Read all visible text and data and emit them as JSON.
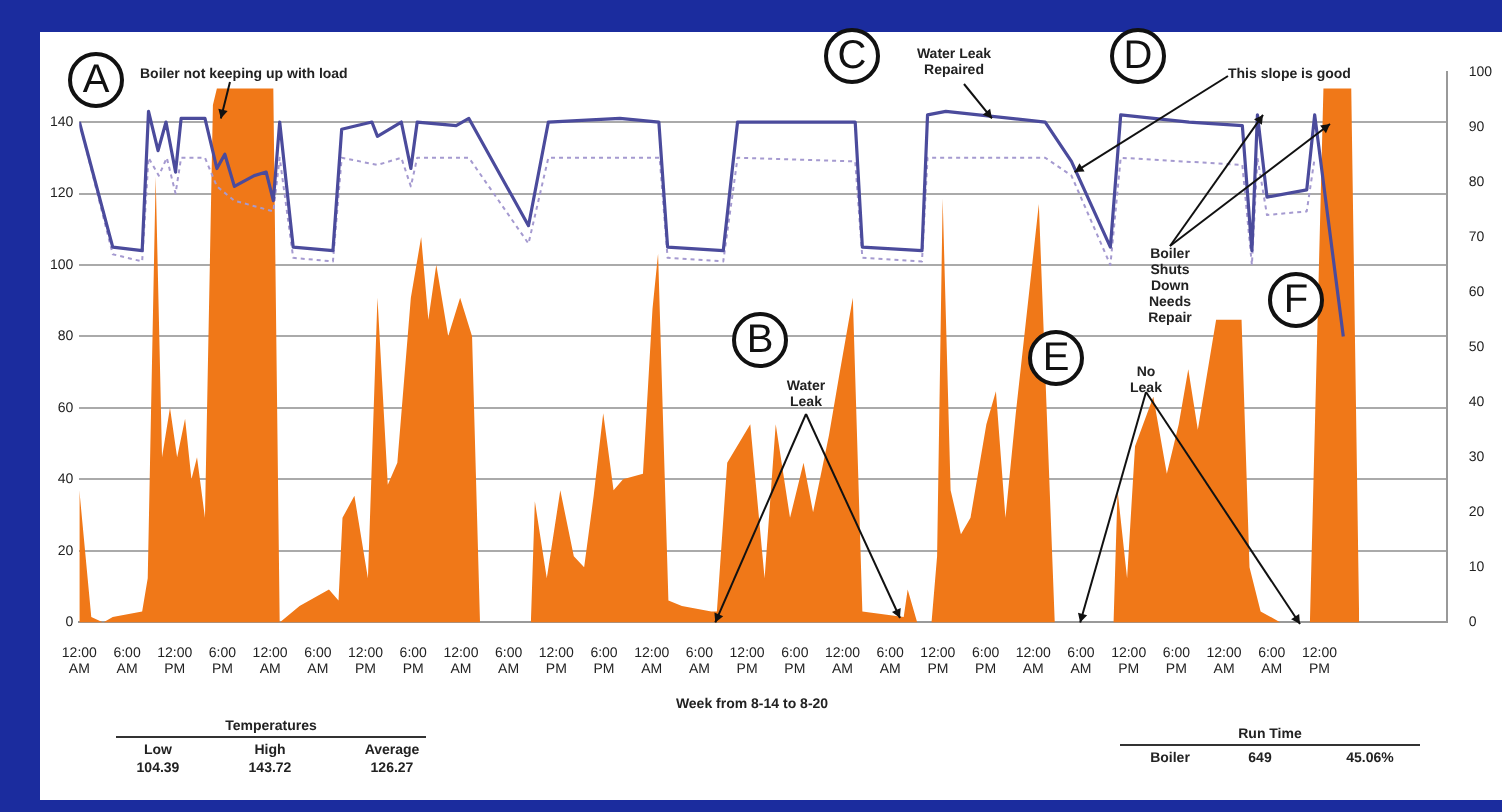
{
  "chart_data": {
    "type": "area",
    "xlabel": "Week from 8-14 to 8-20",
    "xlim": [
      "--08-14T00:00",
      "--08-21T04:00"
    ],
    "xticks": [
      {
        "value": "--08-14T00:00",
        "label": "12:00 AM"
      },
      {
        "value": "--08-14T06:00",
        "label": "6:00 AM"
      },
      {
        "value": "--08-14T12:00",
        "label": "12:00 PM"
      },
      {
        "value": "--08-14T18:00",
        "label": "6:00 PM"
      },
      {
        "value": "--08-15T00:00",
        "label": "12:00 AM"
      },
      {
        "value": "--08-15T06:00",
        "label": "6:00 AM"
      },
      {
        "value": "--08-15T12:00",
        "label": "12:00 PM"
      },
      {
        "value": "--08-15T18:00",
        "label": "6:00 PM"
      },
      {
        "value": "--08-16T00:00",
        "label": "12:00 AM"
      },
      {
        "value": "--08-16T06:00",
        "label": "6:00 AM"
      },
      {
        "value": "--08-16T12:00",
        "label": "12:00 PM"
      },
      {
        "value": "--08-16T18:00",
        "label": "6:00 PM"
      },
      {
        "value": "--08-17T00:00",
        "label": "12:00 AM"
      },
      {
        "value": "--08-17T06:00",
        "label": "6:00 AM"
      },
      {
        "value": "--08-17T12:00",
        "label": "12:00 PM"
      },
      {
        "value": "--08-17T18:00",
        "label": "6:00 PM"
      },
      {
        "value": "--08-18T00:00",
        "label": "12:00 AM"
      },
      {
        "value": "--08-18T06:00",
        "label": "6:00 AM"
      },
      {
        "value": "--08-18T12:00",
        "label": "12:00 PM"
      },
      {
        "value": "--08-18T18:00",
        "label": "6:00 PM"
      },
      {
        "value": "--08-19T00:00",
        "label": "12:00 AM"
      },
      {
        "value": "--08-19T06:00",
        "label": "6:00 AM"
      },
      {
        "value": "--08-19T12:00",
        "label": "12:00 PM"
      },
      {
        "value": "--08-19T18:00",
        "label": "6:00 PM"
      },
      {
        "value": "--08-20T00:00",
        "label": "12:00 AM"
      },
      {
        "value": "--08-20T06:00",
        "label": "6:00 AM"
      },
      {
        "value": "--08-20T12:00",
        "label": "12:00 PM"
      }
    ],
    "ylim": [
      0,
      154
    ],
    "yticks": [
      0,
      20,
      40,
      60,
      80,
      100,
      120,
      140
    ],
    "y2lim": [
      0,
      100
    ],
    "y2ticks": [
      0,
      10,
      20,
      30,
      40,
      50,
      60,
      70,
      80,
      90,
      100
    ],
    "grid": "y",
    "series": [
      {
        "type": "line",
        "color": "#4b4b9c",
        "line_style": "solid",
        "x": [
          "--08-14T00:00",
          "--08-14T04:12",
          "--08-14T07:54",
          "--08-14T08:42",
          "--08-14T09:54",
          "--08-14T10:54",
          "--08-14T12:06",
          "--08-14T12:48",
          "--08-14T15:48",
          "--08-14T17:18",
          "--08-14T18:18",
          "--08-14T19:30",
          "--08-14T22:00",
          "--08-14T23:30",
          "--08-15T00:24",
          "--08-15T01:12",
          "--08-15T02:54",
          "--08-15T07:54",
          "--08-15T09:00",
          "--08-15T12:48",
          "--08-15T13:30",
          "--08-15T16:30",
          "--08-15T17:42",
          "--08-15T18:30",
          "--08-15T23:24",
          "--08-16T01:00",
          "--08-16T08:30",
          "--08-16T11:00",
          "--08-16T20:00",
          "--08-17T00:54",
          "--08-17T02:00",
          "--08-17T09:00",
          "--08-17T10:48",
          "--08-18T01:36",
          "--08-18T02:30",
          "--08-18T10:00",
          "--08-18T10:42",
          "--08-18T13:00",
          "--08-19T01:30",
          "--08-19T04:48",
          "--08-19T09:42",
          "--08-19T11:00",
          "--08-19T19:36",
          "--08-20T02:18",
          "--08-20T03:30",
          "--08-20T04:12",
          "--08-20T05:24",
          "--08-20T10:24",
          "--08-20T11:24",
          "--08-20T15:00"
        ],
        "values": [
          140,
          105,
          104,
          143,
          132,
          140,
          126,
          141,
          141,
          127,
          131,
          122,
          125,
          126,
          118,
          140,
          105,
          104,
          138,
          140,
          136,
          140,
          127,
          140,
          139,
          141,
          111,
          140,
          141,
          140,
          105,
          104,
          140,
          140,
          105,
          104,
          142,
          143,
          140,
          129,
          105,
          142,
          140,
          139,
          104,
          142,
          119,
          121,
          142,
          80
        ]
      },
      {
        "type": "line",
        "color": "#a59ad0",
        "line_style": "dotted",
        "x": [
          "--08-14T00:00",
          "--08-14T04:12",
          "--08-14T07:54",
          "--08-14T08:42",
          "--08-14T10:00",
          "--08-14T11:00",
          "--08-14T12:06",
          "--08-14T12:48",
          "--08-14T15:48",
          "--08-14T17:18",
          "--08-14T19:30",
          "--08-15T00:24",
          "--08-15T01:12",
          "--08-15T02:54",
          "--08-15T07:54",
          "--08-15T09:00",
          "--08-15T13:30",
          "--08-15T16:30",
          "--08-15T17:42",
          "--08-15T18:30",
          "--08-16T01:00",
          "--08-16T08:30",
          "--08-16T11:00",
          "--08-17T01:00",
          "--08-17T02:00",
          "--08-17T09:00",
          "--08-17T10:48",
          "--08-18T01:36",
          "--08-18T02:30",
          "--08-18T10:00",
          "--08-18T10:42",
          "--08-19T01:30",
          "--08-19T04:48",
          "--08-19T09:42",
          "--08-19T11:00",
          "--08-20T02:18",
          "--08-20T03:30",
          "--08-20T04:12",
          "--08-20T05:24",
          "--08-20T10:24",
          "--08-20T11:24"
        ],
        "values": [
          140,
          103,
          101,
          130,
          125,
          130,
          120,
          130,
          130,
          122,
          118,
          115,
          130,
          102,
          101,
          130,
          128,
          130,
          122,
          130,
          130,
          106,
          130,
          130,
          102,
          101,
          130,
          129,
          102,
          101,
          130,
          130,
          125,
          100,
          130,
          128,
          100,
          130,
          114,
          115,
          130
        ]
      },
      {
        "axis": "y2",
        "color": "#f07818",
        "x": [
          "--08-14T00:00",
          "--08-14T01:30",
          "--08-14T03:00",
          "--08-14T04:12",
          "--08-14T07:54",
          "--08-14T08:36",
          "--08-14T09:36",
          "--08-14T10:24",
          "--08-14T11:24",
          "--08-14T12:18",
          "--08-14T13:18",
          "--08-14T14:06",
          "--08-14T14:48",
          "--08-14T15:48",
          "--08-14T16:48",
          "--08-14T17:18",
          "--08-15T00:24",
          "--08-15T01:12",
          "--08-15T03:42",
          "--08-15T07:24",
          "--08-15T08:36",
          "--08-15T09:06",
          "--08-15T10:36",
          "--08-15T12:18",
          "--08-15T13:30",
          "--08-15T14:48",
          "--08-15T16:00",
          "--08-15T17:42",
          "--08-15T19:00",
          "--08-15T19:54",
          "--08-15T20:54",
          "--08-15T22:24",
          "--08-15T23:54",
          "--08-16T01:24",
          "--08-16T02:24",
          "--08-16T08:48",
          "--08-16T09:18",
          "--08-16T10:48",
          "--08-16T12:30",
          "--08-16T14:12",
          "--08-16T15:30",
          "--08-16T16:42",
          "--08-16T17:54",
          "--08-16T19:12",
          "--08-16T20:24",
          "--08-16T22:54",
          "--08-17T00:06",
          "--08-17T00:48",
          "--08-17T02:06",
          "--08-17T03:48",
          "--08-17T07:30",
          "--08-17T08:12",
          "--08-17T09:30",
          "--08-17T12:24",
          "--08-17T14:12",
          "--08-17T15:36",
          "--08-17T17:24",
          "--08-17T19:06",
          "--08-17T20:18",
          "--08-17T22:18",
          "--08-17T23:36",
          "--08-18T01:18",
          "--08-18T02:30",
          "--08-18T07:42",
          "--08-18T08:12",
          "--08-18T09:24",
          "--08-18T11:12",
          "--08-18T11:54",
          "--08-18T12:36",
          "--08-18T13:36",
          "--08-18T14:54",
          "--08-18T16:06",
          "--08-18T18:06",
          "--08-18T19:18",
          "--08-18T20:30",
          "--08-18T21:48",
          "--08-19T00:42",
          "--08-19T02:42",
          "--08-19T10:06",
          "--08-19T10:36",
          "--08-19T11:48",
          "--08-19T12:48",
          "--08-19T15:06",
          "--08-19T16:48",
          "--08-19T18:18",
          "--08-19T19:30",
          "--08-19T20:42",
          "--08-19T23:00",
          "--08-20T02:12",
          "--08-20T03:12",
          "--08-20T04:36",
          "--08-20T07:06",
          "--08-20T10:48",
          "--08-20T12:30",
          "--08-20T16:00",
          "--08-20T17:00"
        ],
        "values": [
          24,
          1,
          0,
          1,
          2,
          8,
          81,
          30,
          39,
          30,
          37,
          26,
          30,
          19,
          94,
          97,
          97,
          0,
          3,
          6,
          4,
          19,
          23,
          8,
          59,
          25,
          29,
          59,
          70,
          55,
          65,
          52,
          59,
          52,
          0,
          0,
          22,
          8,
          24,
          12,
          10,
          23,
          38,
          24,
          26,
          27,
          57,
          67,
          4,
          3,
          2,
          2,
          29,
          36,
          8,
          36,
          19,
          29,
          20,
          34,
          45,
          59,
          2,
          1,
          6,
          0,
          0,
          12,
          77,
          24,
          16,
          19,
          36,
          42,
          19,
          38,
          76,
          0,
          0,
          24,
          8,
          32,
          41,
          27,
          36,
          46,
          35,
          55,
          55,
          10,
          2,
          0,
          0,
          97,
          97,
          0
        ]
      }
    ],
    "annotations": [
      "A",
      {
        "text": "Boiler not keeping up with load",
        "x": "--08-14T17:48",
        "y": 141
      },
      "B",
      {
        "text": "Water Leak",
        "x": "--08-17T08:00",
        "y": 0
      },
      "C",
      {
        "text": "Water Leak Repaired",
        "x": "--08-18T18:48",
        "y": 141
      },
      "D",
      {
        "text": "This slope is good",
        "x": "--08-19T05:12",
        "y": 126
      },
      "E",
      {
        "text": "No Leak",
        "x": "--08-19T05:54",
        "y": 0
      },
      "F",
      {
        "text": "Boiler Shuts Down Needs Repair",
        "x": "--08-20T04:54",
        "y": 142
      },
      "Temperatures",
      "Low",
      "High",
      "Average",
      "104.39",
      "143.72",
      "126.27",
      "Run Time",
      "Boiler",
      "649",
      "45.06%"
    ]
  }
}
